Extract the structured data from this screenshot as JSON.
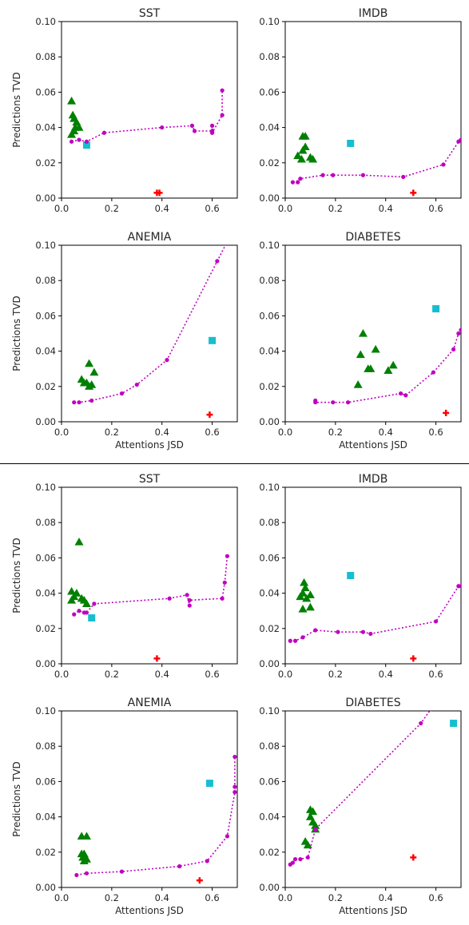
{
  "colors": {
    "triangles": "#008000",
    "square": "#17becf",
    "plus": "#ff0000",
    "frontier": "#bf00bf"
  },
  "chart_data": [
    {
      "type": "scatter",
      "title": "SST",
      "xlabel": "",
      "ylabel": "Predictions TVD",
      "xlim": [
        0,
        0.7
      ],
      "ylim": [
        0,
        0.1
      ],
      "xticks": [
        "0.0",
        "0.2",
        "0.4",
        "0.6"
      ],
      "yticks": [
        "0.00",
        "0.02",
        "0.04",
        "0.06",
        "0.08",
        "0.10"
      ],
      "series": [
        {
          "marker": "triangle",
          "points": [
            [
              0.04,
              0.055
            ],
            [
              0.045,
              0.047
            ],
            [
              0.05,
              0.045
            ],
            [
              0.06,
              0.043
            ],
            [
              0.055,
              0.04
            ],
            [
              0.07,
              0.04
            ],
            [
              0.05,
              0.038
            ],
            [
              0.04,
              0.036
            ]
          ]
        },
        {
          "marker": "square",
          "points": [
            [
              0.1,
              0.03
            ]
          ]
        },
        {
          "marker": "plus",
          "points": [
            [
              0.38,
              0.003
            ],
            [
              0.39,
              0.003
            ]
          ]
        },
        {
          "marker": "frontier",
          "points": [
            [
              0.04,
              0.032
            ],
            [
              0.07,
              0.033
            ],
            [
              0.1,
              0.032
            ],
            [
              0.17,
              0.037
            ],
            [
              0.4,
              0.04
            ],
            [
              0.52,
              0.041
            ],
            [
              0.53,
              0.038
            ],
            [
              0.6,
              0.038
            ],
            [
              0.6,
              0.041
            ],
            [
              0.6,
              0.037
            ],
            [
              0.64,
              0.047
            ],
            [
              0.64,
              0.061
            ]
          ]
        }
      ]
    },
    {
      "type": "scatter",
      "title": "IMDB",
      "xlabel": "",
      "ylabel": "",
      "xlim": [
        0,
        0.7
      ],
      "ylim": [
        0,
        0.1
      ],
      "xticks": [
        "0.0",
        "0.2",
        "0.4",
        "0.6"
      ],
      "yticks": [
        "0.00",
        "0.02",
        "0.04",
        "0.06",
        "0.08",
        "0.10"
      ],
      "series": [
        {
          "marker": "triangle",
          "points": [
            [
              0.07,
              0.035
            ],
            [
              0.08,
              0.035
            ],
            [
              0.08,
              0.029
            ],
            [
              0.07,
              0.027
            ],
            [
              0.05,
              0.024
            ],
            [
              0.065,
              0.022
            ],
            [
              0.1,
              0.023
            ],
            [
              0.11,
              0.022
            ]
          ]
        },
        {
          "marker": "square",
          "points": [
            [
              0.26,
              0.031
            ]
          ]
        },
        {
          "marker": "plus",
          "points": [
            [
              0.51,
              0.003
            ]
          ]
        },
        {
          "marker": "frontier",
          "points": [
            [
              0.03,
              0.009
            ],
            [
              0.05,
              0.009
            ],
            [
              0.06,
              0.011
            ],
            [
              0.15,
              0.013
            ],
            [
              0.19,
              0.013
            ],
            [
              0.31,
              0.013
            ],
            [
              0.47,
              0.012
            ],
            [
              0.63,
              0.019
            ],
            [
              0.69,
              0.032
            ],
            [
              0.7,
              0.033
            ]
          ]
        }
      ]
    },
    {
      "type": "scatter",
      "title": "ANEMIA",
      "xlabel": "Attentions JSD",
      "ylabel": "Predictions TVD",
      "xlim": [
        0,
        0.7
      ],
      "ylim": [
        0,
        0.1
      ],
      "xticks": [
        "0.0",
        "0.2",
        "0.4",
        "0.6"
      ],
      "yticks": [
        "0.00",
        "0.02",
        "0.04",
        "0.06",
        "0.08",
        "0.10"
      ],
      "series": [
        {
          "marker": "triangle",
          "points": [
            [
              0.11,
              0.033
            ],
            [
              0.13,
              0.028
            ],
            [
              0.08,
              0.024
            ],
            [
              0.09,
              0.022
            ],
            [
              0.1,
              0.022
            ],
            [
              0.11,
              0.02
            ],
            [
              0.12,
              0.021
            ]
          ]
        },
        {
          "marker": "square",
          "points": [
            [
              0.6,
              0.046
            ]
          ]
        },
        {
          "marker": "plus",
          "points": [
            [
              0.59,
              0.004
            ]
          ]
        },
        {
          "marker": "frontier",
          "points": [
            [
              0.05,
              0.011
            ],
            [
              0.07,
              0.011
            ],
            [
              0.12,
              0.012
            ],
            [
              0.24,
              0.016
            ],
            [
              0.3,
              0.021
            ],
            [
              0.42,
              0.035
            ],
            [
              0.62,
              0.091
            ],
            [
              0.66,
              0.102
            ]
          ]
        }
      ]
    },
    {
      "type": "scatter",
      "title": "DIABETES",
      "xlabel": "Attentions JSD",
      "ylabel": "",
      "xlim": [
        0,
        0.7
      ],
      "ylim": [
        0,
        0.1
      ],
      "xticks": [
        "0.0",
        "0.2",
        "0.4",
        "0.6"
      ],
      "yticks": [
        "0.00",
        "0.02",
        "0.04",
        "0.06",
        "0.08",
        "0.10"
      ],
      "series": [
        {
          "marker": "triangle",
          "points": [
            [
              0.31,
              0.05
            ],
            [
              0.36,
              0.041
            ],
            [
              0.3,
              0.038
            ],
            [
              0.34,
              0.03
            ],
            [
              0.33,
              0.03
            ],
            [
              0.41,
              0.029
            ],
            [
              0.43,
              0.032
            ],
            [
              0.29,
              0.021
            ]
          ]
        },
        {
          "marker": "square",
          "points": [
            [
              0.6,
              0.064
            ]
          ]
        },
        {
          "marker": "plus",
          "points": [
            [
              0.64,
              0.005
            ]
          ]
        },
        {
          "marker": "frontier",
          "points": [
            [
              0.12,
              0.012
            ],
            [
              0.12,
              0.011
            ],
            [
              0.19,
              0.011
            ],
            [
              0.25,
              0.011
            ],
            [
              0.46,
              0.016
            ],
            [
              0.48,
              0.015
            ],
            [
              0.59,
              0.028
            ],
            [
              0.67,
              0.041
            ],
            [
              0.69,
              0.05
            ],
            [
              0.7,
              0.052
            ]
          ]
        }
      ]
    },
    {
      "type": "scatter",
      "title": "SST",
      "xlabel": "",
      "ylabel": "Predictions TVD",
      "xlim": [
        0,
        0.7
      ],
      "ylim": [
        0,
        0.1
      ],
      "xticks": [
        "0.0",
        "0.2",
        "0.4",
        "0.6"
      ],
      "yticks": [
        "0.00",
        "0.02",
        "0.04",
        "0.06",
        "0.08",
        "0.10"
      ],
      "series": [
        {
          "marker": "triangle",
          "points": [
            [
              0.07,
              0.069
            ],
            [
              0.04,
              0.041
            ],
            [
              0.05,
              0.038
            ],
            [
              0.06,
              0.04
            ],
            [
              0.08,
              0.037
            ],
            [
              0.09,
              0.036
            ],
            [
              0.1,
              0.034
            ],
            [
              0.04,
              0.036
            ]
          ]
        },
        {
          "marker": "square",
          "points": [
            [
              0.12,
              0.026
            ]
          ]
        },
        {
          "marker": "plus",
          "points": [
            [
              0.38,
              0.003
            ]
          ]
        },
        {
          "marker": "frontier",
          "points": [
            [
              0.05,
              0.028
            ],
            [
              0.07,
              0.03
            ],
            [
              0.09,
              0.029
            ],
            [
              0.1,
              0.029
            ],
            [
              0.13,
              0.034
            ],
            [
              0.43,
              0.037
            ],
            [
              0.5,
              0.039
            ],
            [
              0.51,
              0.033
            ],
            [
              0.51,
              0.036
            ],
            [
              0.64,
              0.037
            ],
            [
              0.65,
              0.046
            ],
            [
              0.66,
              0.061
            ]
          ]
        }
      ]
    },
    {
      "type": "scatter",
      "title": "IMDB",
      "xlabel": "",
      "ylabel": "",
      "xlim": [
        0,
        0.7
      ],
      "ylim": [
        0,
        0.1
      ],
      "xticks": [
        "0.0",
        "0.2",
        "0.4",
        "0.6"
      ],
      "yticks": [
        "0.00",
        "0.02",
        "0.04",
        "0.06",
        "0.08",
        "0.10"
      ],
      "series": [
        {
          "marker": "triangle",
          "points": [
            [
              0.075,
              0.046
            ],
            [
              0.08,
              0.043
            ],
            [
              0.07,
              0.04
            ],
            [
              0.06,
              0.038
            ],
            [
              0.1,
              0.039
            ],
            [
              0.085,
              0.037
            ],
            [
              0.07,
              0.031
            ],
            [
              0.1,
              0.032
            ]
          ]
        },
        {
          "marker": "square",
          "points": [
            [
              0.26,
              0.05
            ]
          ]
        },
        {
          "marker": "plus",
          "points": [
            [
              0.51,
              0.003
            ]
          ]
        },
        {
          "marker": "frontier",
          "points": [
            [
              0.02,
              0.013
            ],
            [
              0.04,
              0.013
            ],
            [
              0.07,
              0.015
            ],
            [
              0.12,
              0.019
            ],
            [
              0.21,
              0.018
            ],
            [
              0.31,
              0.018
            ],
            [
              0.34,
              0.017
            ],
            [
              0.6,
              0.024
            ],
            [
              0.69,
              0.044
            ],
            [
              0.7,
              0.044
            ]
          ]
        }
      ]
    },
    {
      "type": "scatter",
      "title": "ANEMIA",
      "xlabel": "Attentions JSD",
      "ylabel": "Predictions TVD",
      "xlim": [
        0,
        0.7
      ],
      "ylim": [
        0,
        0.1
      ],
      "xticks": [
        "0.0",
        "0.2",
        "0.4",
        "0.6"
      ],
      "yticks": [
        "0.00",
        "0.02",
        "0.04",
        "0.06",
        "0.08",
        "0.10"
      ],
      "series": [
        {
          "marker": "triangle",
          "points": [
            [
              0.08,
              0.029
            ],
            [
              0.1,
              0.029
            ],
            [
              0.08,
              0.019
            ],
            [
              0.09,
              0.019
            ],
            [
              0.085,
              0.017
            ],
            [
              0.1,
              0.016
            ],
            [
              0.09,
              0.015
            ]
          ]
        },
        {
          "marker": "square",
          "points": [
            [
              0.59,
              0.059
            ]
          ]
        },
        {
          "marker": "plus",
          "points": [
            [
              0.55,
              0.004
            ]
          ]
        },
        {
          "marker": "frontier",
          "points": [
            [
              0.06,
              0.007
            ],
            [
              0.1,
              0.008
            ],
            [
              0.24,
              0.009
            ],
            [
              0.47,
              0.012
            ],
            [
              0.58,
              0.015
            ],
            [
              0.66,
              0.029
            ],
            [
              0.69,
              0.054
            ],
            [
              0.69,
              0.057
            ],
            [
              0.69,
              0.074
            ]
          ]
        }
      ]
    },
    {
      "type": "scatter",
      "title": "DIABETES",
      "xlabel": "Attentions JSD",
      "ylabel": "",
      "xlim": [
        0,
        0.7
      ],
      "ylim": [
        0,
        0.1
      ],
      "xticks": [
        "0.0",
        "0.2",
        "0.4",
        "0.6"
      ],
      "yticks": [
        "0.00",
        "0.02",
        "0.04",
        "0.06",
        "0.08",
        "0.10"
      ],
      "series": [
        {
          "marker": "triangle",
          "points": [
            [
              0.1,
              0.044
            ],
            [
              0.11,
              0.043
            ],
            [
              0.1,
              0.04
            ],
            [
              0.11,
              0.037
            ],
            [
              0.12,
              0.035
            ],
            [
              0.08,
              0.026
            ],
            [
              0.09,
              0.024
            ],
            [
              0.12,
              0.033
            ]
          ]
        },
        {
          "marker": "square",
          "points": [
            [
              0.67,
              0.093
            ]
          ]
        },
        {
          "marker": "plus",
          "points": [
            [
              0.51,
              0.017
            ]
          ]
        },
        {
          "marker": "frontier",
          "points": [
            [
              0.02,
              0.013
            ],
            [
              0.03,
              0.014
            ],
            [
              0.04,
              0.016
            ],
            [
              0.06,
              0.016
            ],
            [
              0.09,
              0.017
            ],
            [
              0.12,
              0.033
            ],
            [
              0.54,
              0.093
            ],
            [
              0.58,
              0.101
            ]
          ]
        }
      ]
    }
  ]
}
